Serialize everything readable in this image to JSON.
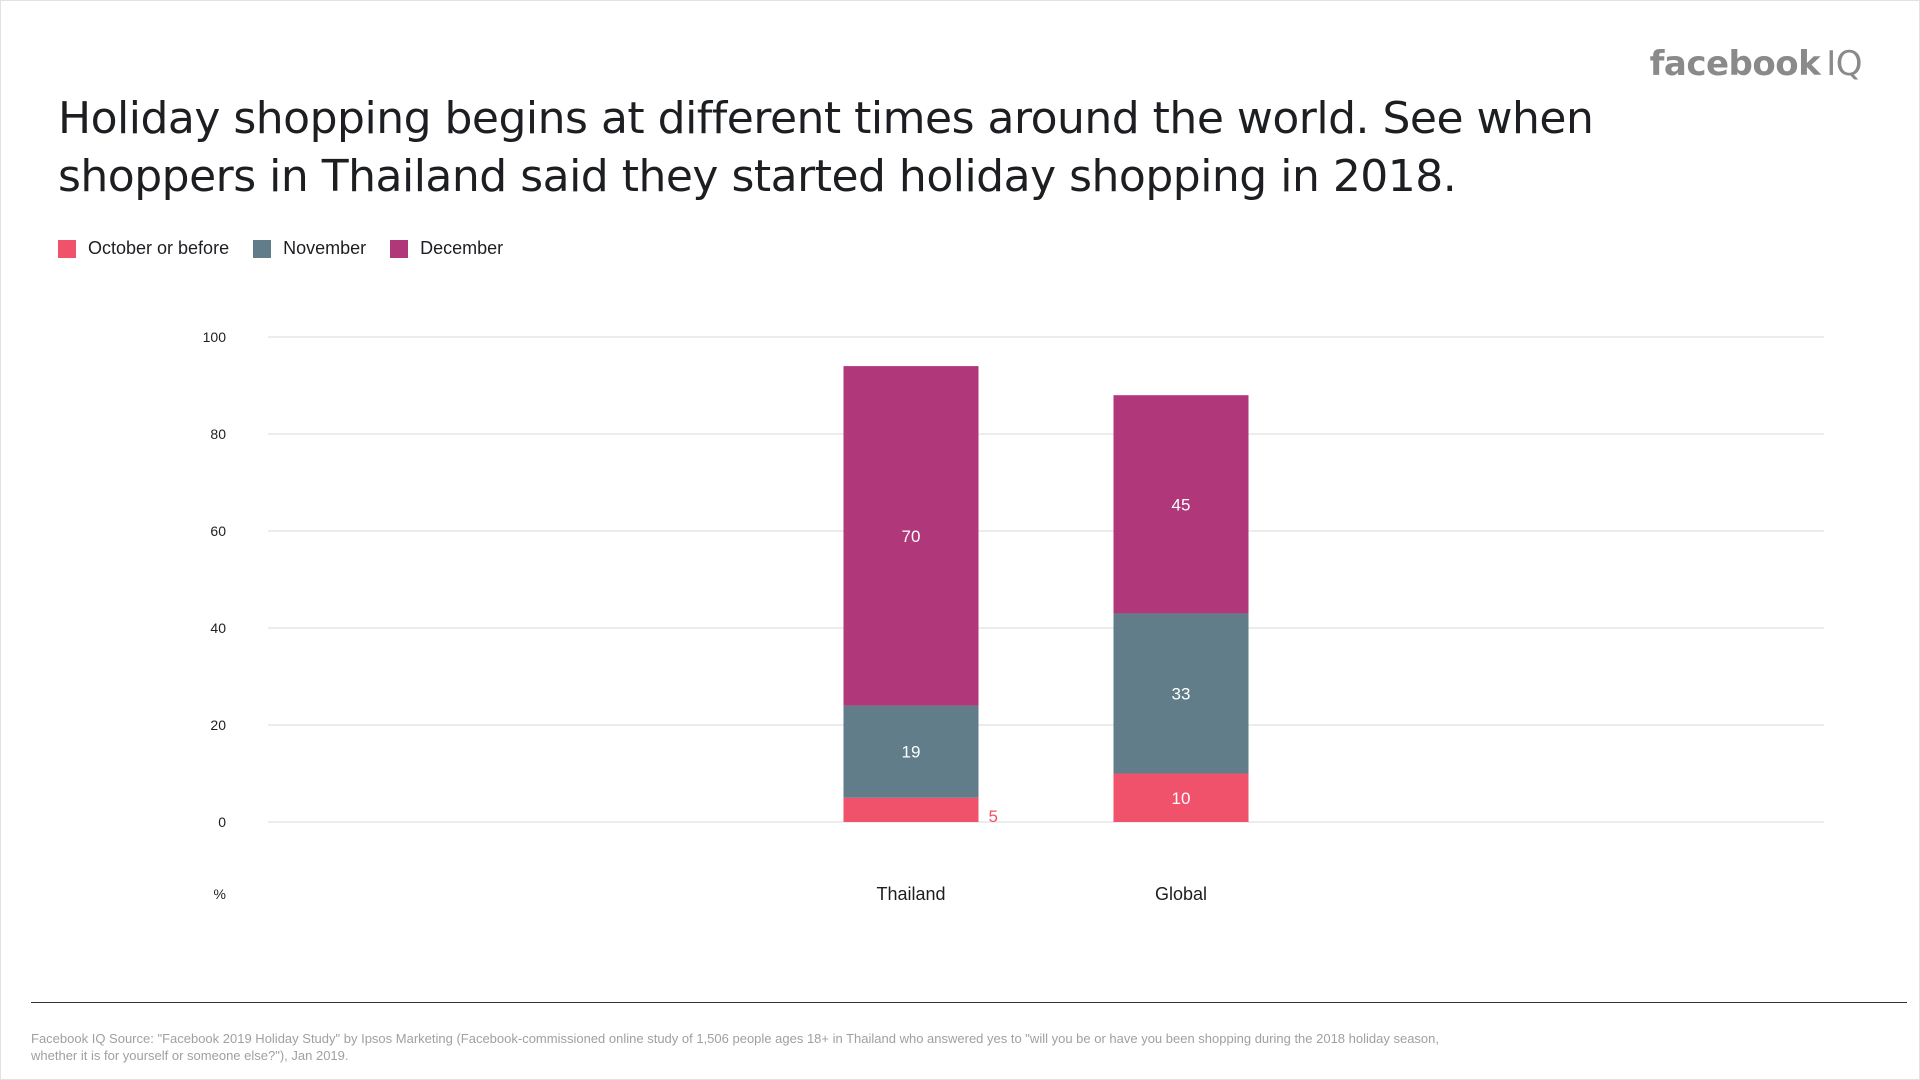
{
  "brand": {
    "name": "facebook",
    "suffix": "IQ"
  },
  "title": "Holiday shopping begins at different times around the world. See when shoppers in Thailand said they started holiday shopping in 2018.",
  "source": "Facebook IQ Source: \"Facebook 2019 Holiday Study\" by Ipsos Marketing (Facebook-commissioned online study of 1,506 people ages 18+ in Thailand who answered yes to \"will you be or have you been shopping during the 2018 holiday season, whether it is for yourself or someone else?\"), Jan 2019.",
  "chart_data": {
    "type": "bar",
    "stacked": true,
    "categories": [
      "Thailand",
      "Global"
    ],
    "series": [
      {
        "name": "October or before",
        "values": [
          5,
          10
        ],
        "color": "#f0516b"
      },
      {
        "name": "November",
        "values": [
          19,
          33
        ],
        "color": "#617d8a"
      },
      {
        "name": "December",
        "values": [
          70,
          45
        ],
        "color": "#b0377a"
      }
    ],
    "ylabel": "%",
    "ylim": [
      0,
      100
    ],
    "yticks": [
      0,
      20,
      40,
      60,
      80,
      100
    ],
    "grid": true,
    "legend": "top-left"
  }
}
